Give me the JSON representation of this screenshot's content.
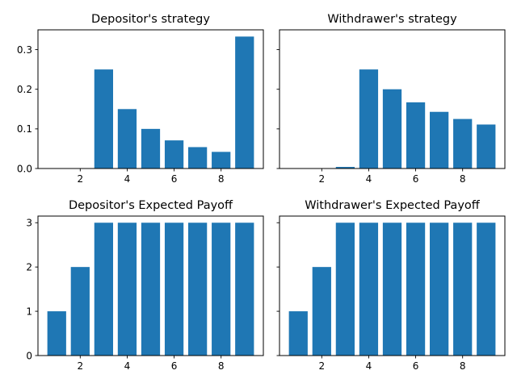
{
  "bar_color": "#1f77b4",
  "chart_data": [
    {
      "type": "bar",
      "title": "Depositor's strategy",
      "x": [
        1,
        2,
        3,
        4,
        5,
        6,
        7,
        8,
        9
      ],
      "values": [
        0,
        0,
        0.25,
        0.15,
        0.1,
        0.071,
        0.054,
        0.042,
        0.333
      ],
      "xlim": [
        0.2,
        9.8
      ],
      "ylim": [
        0,
        0.35
      ],
      "xticks": [
        2,
        4,
        6,
        8
      ],
      "yticks": [
        0.0,
        0.1,
        0.2,
        0.3
      ],
      "ytick_labels": [
        "0.0",
        "0.1",
        "0.2",
        "0.3"
      ],
      "show_yticklabels": true
    },
    {
      "type": "bar",
      "title": "Withdrawer's strategy",
      "x": [
        1,
        2,
        3,
        4,
        5,
        6,
        7,
        8,
        9
      ],
      "values": [
        0,
        0,
        0.004,
        0.25,
        0.2,
        0.167,
        0.143,
        0.125,
        0.111
      ],
      "xlim": [
        0.2,
        9.8
      ],
      "ylim": [
        0,
        0.35
      ],
      "xticks": [
        2,
        4,
        6,
        8
      ],
      "yticks": [
        0.0,
        0.1,
        0.2,
        0.3
      ],
      "ytick_labels": [
        "0.0",
        "0.1",
        "0.2",
        "0.3"
      ],
      "show_yticklabels": false
    },
    {
      "type": "bar",
      "title": "Depositor's Expected Payoff",
      "x": [
        1,
        2,
        3,
        4,
        5,
        6,
        7,
        8,
        9
      ],
      "values": [
        1,
        2,
        3,
        3,
        3,
        3,
        3,
        3,
        3
      ],
      "xlim": [
        0.2,
        9.8
      ],
      "ylim": [
        0,
        3.15
      ],
      "xticks": [
        2,
        4,
        6,
        8
      ],
      "yticks": [
        0,
        1,
        2,
        3
      ],
      "ytick_labels": [
        "0",
        "1",
        "2",
        "3"
      ],
      "show_yticklabels": true
    },
    {
      "type": "bar",
      "title": "Withdrawer's Expected Payoff",
      "x": [
        1,
        2,
        3,
        4,
        5,
        6,
        7,
        8,
        9
      ],
      "values": [
        1,
        2,
        3,
        3,
        3,
        3,
        3,
        3,
        3
      ],
      "xlim": [
        0.2,
        9.8
      ],
      "ylim": [
        0,
        3.15
      ],
      "xticks": [
        2,
        4,
        6,
        8
      ],
      "yticks": [
        0,
        1,
        2,
        3
      ],
      "ytick_labels": [
        "0",
        "1",
        "2",
        "3"
      ],
      "show_yticklabels": false
    }
  ]
}
